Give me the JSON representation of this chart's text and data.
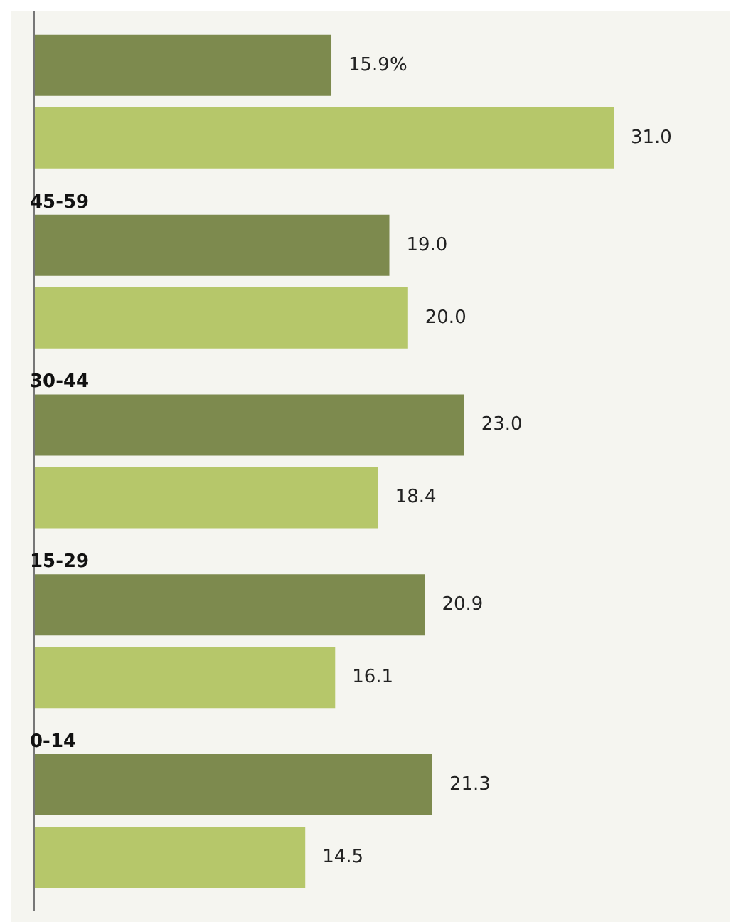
{
  "chart_data": {
    "type": "bar",
    "orientation": "horizontal",
    "categories": [
      null,
      "45-59",
      "30-44",
      "15-29",
      "0-14"
    ],
    "tick_labels": "y",
    "series": [
      {
        "color": "#7d8a4e",
        "values": [
          15.9,
          19.0,
          23.0,
          20.9,
          21.3
        ],
        "value_labels": [
          "15.9%",
          "19.0",
          "23.0",
          "20.9",
          "21.3"
        ]
      },
      {
        "color": "#b6c76a",
        "values": [
          31.0,
          20.0,
          18.4,
          16.1,
          14.5
        ],
        "value_labels": [
          "31.0",
          "20.0",
          "18.4",
          "16.1",
          "14.5"
        ]
      }
    ]
  }
}
